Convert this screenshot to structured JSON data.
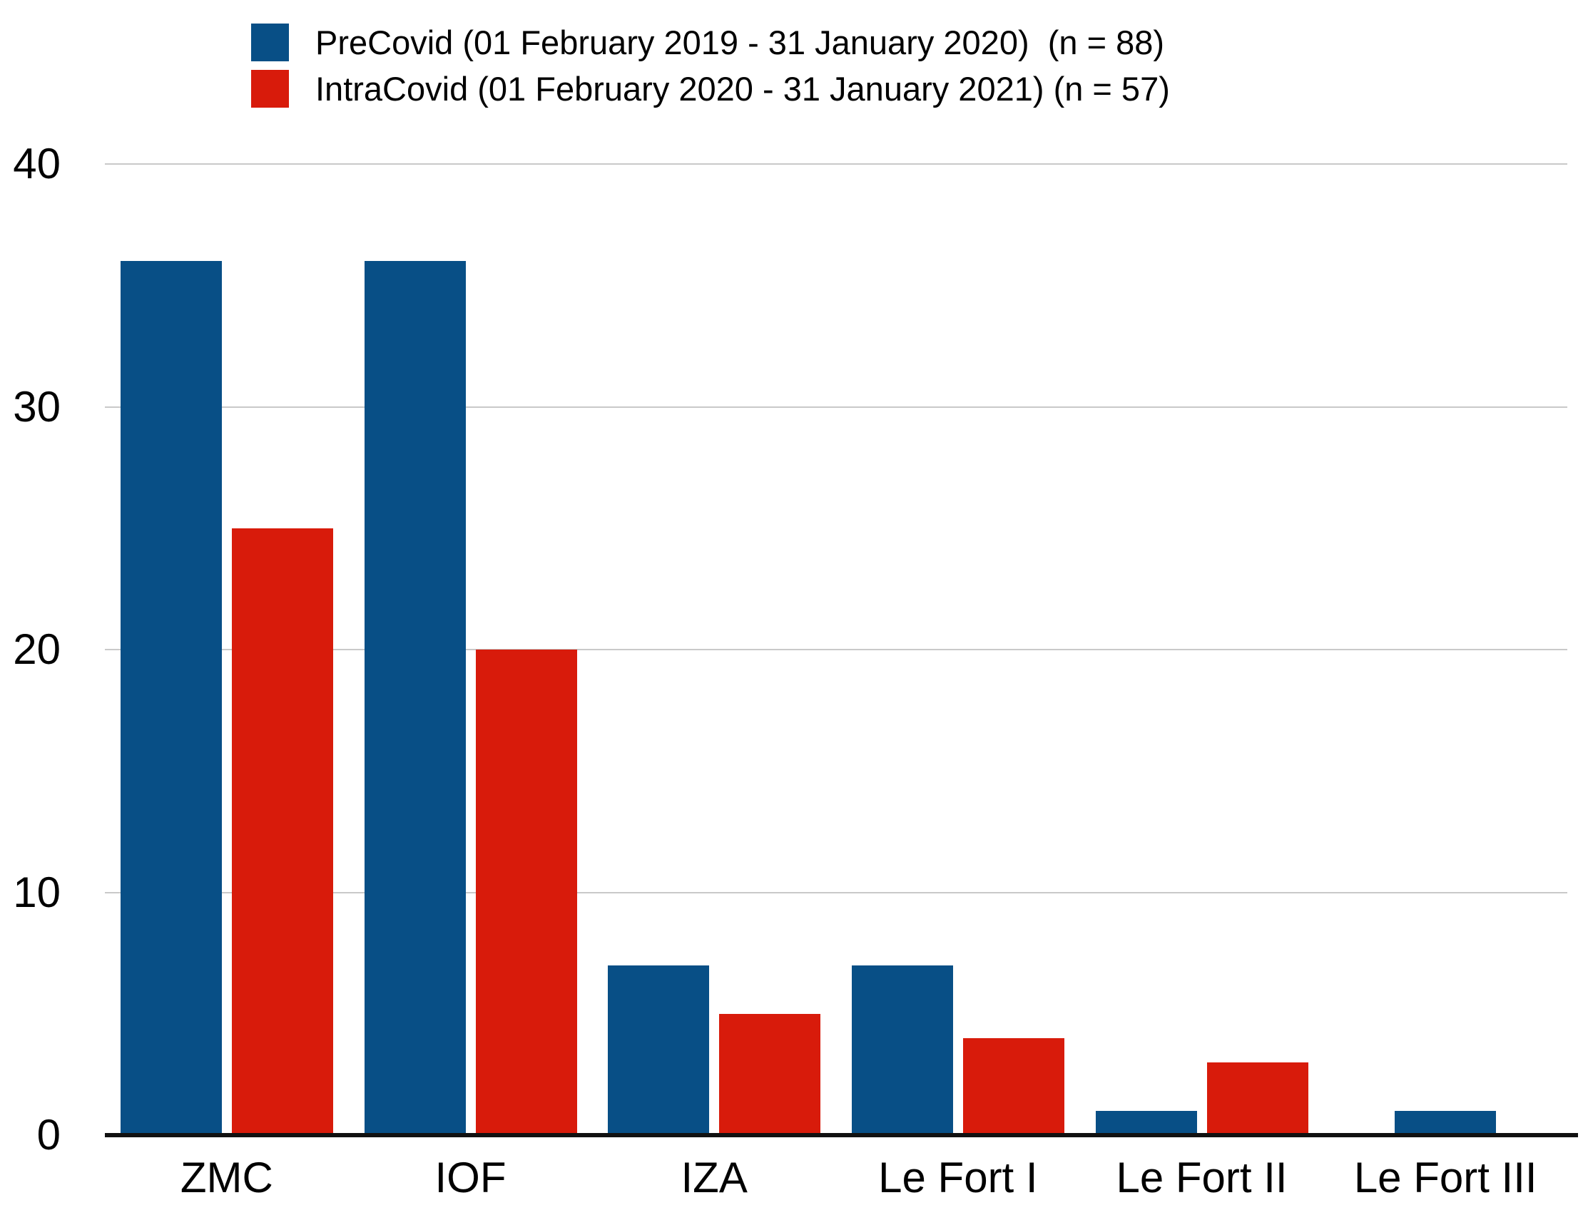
{
  "chart_data": {
    "type": "bar",
    "title": "",
    "xlabel": "",
    "ylabel": "",
    "categories": [
      "ZMC",
      "IOF",
      "IZA",
      "Le Fort I",
      "Le Fort II",
      "Le Fort III"
    ],
    "series": [
      {
        "name": "PreCovid (01 February 2019 - 31 January 2020)  (n = 88)",
        "color": "#084f86",
        "values": [
          36,
          36,
          7,
          7,
          1,
          1
        ]
      },
      {
        "name": "IntraCovid (01 February 2020 - 31 January 2021) (n = 57)",
        "color": "#d81b0b",
        "values": [
          25,
          20,
          5,
          4,
          3,
          0
        ]
      }
    ],
    "ylim": [
      0,
      40
    ],
    "yticks": [
      0,
      10,
      20,
      30,
      40
    ],
    "grid": "horizontal",
    "gridline_color": "#c9c9c9",
    "axis_color": "#111111",
    "text_color": "#000000",
    "legend_position": "top-left"
  }
}
